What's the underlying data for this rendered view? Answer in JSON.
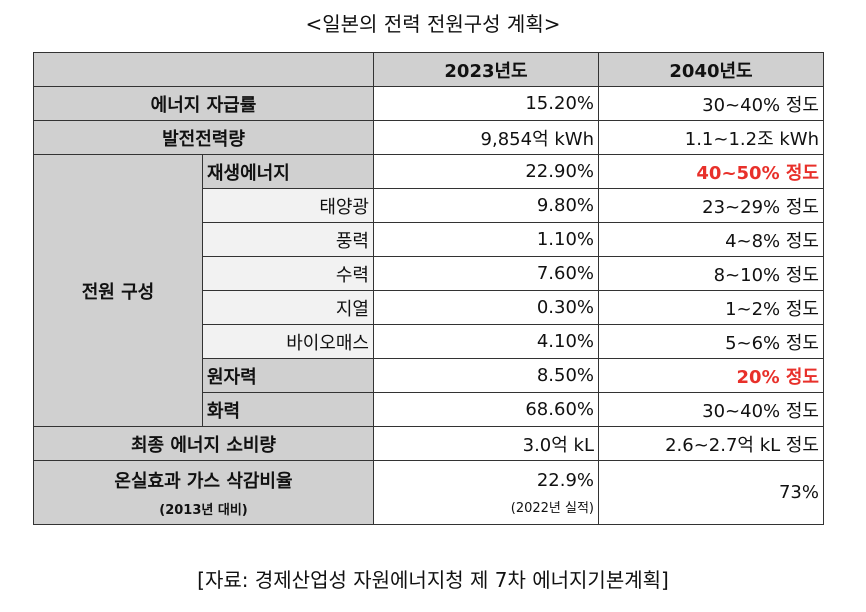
{
  "title": "<일본의 전력 전원구성 계획>",
  "header": {
    "col2023": "2023년도",
    "col2040": "2040년도"
  },
  "rows": {
    "self_sufficiency": {
      "label": "에너지 자급률",
      "v2023": "15.20%",
      "v2040": "30~40% 정도"
    },
    "generation": {
      "label": "발전전력량",
      "v2023": "9,854억 kWh",
      "v2040": "1.1~1.2조 kWh"
    },
    "mix_label": "전원 구성",
    "renewable": {
      "label": "재생에너지",
      "v2023": "22.90%",
      "v2040": "40~50% 정도"
    },
    "solar": {
      "label": "태양광",
      "v2023": "9.80%",
      "v2040": "23~29% 정도"
    },
    "wind": {
      "label": "풍력",
      "v2023": "1.10%",
      "v2040": "4~8% 정도"
    },
    "hydro": {
      "label": "수력",
      "v2023": "7.60%",
      "v2040": "8~10% 정도"
    },
    "geothermal": {
      "label": "지열",
      "v2023": "0.30%",
      "v2040": "1~2% 정도"
    },
    "biomass": {
      "label": "바이오매스",
      "v2023": "4.10%",
      "v2040": "5~6% 정도"
    },
    "nuclear": {
      "label": "원자력",
      "v2023": "8.50%",
      "v2040": "20% 정도"
    },
    "thermal": {
      "label": "화력",
      "v2023": "68.60%",
      "v2040": "30~40% 정도"
    },
    "final_consumption": {
      "label": "최종 에너지 소비량",
      "v2023": "3.0억 kL",
      "v2040": "2.6~2.7억 kL 정도"
    },
    "ghg": {
      "label": "온실효과 가스 삭감비율",
      "label_note": "(2013년 대비)",
      "v2023": "22.9%",
      "v2023_note": "(2022년 실적)",
      "v2040": "73%"
    }
  },
  "source": "[자료: 경제산업성 자원에너지청 제 7차 에너지기본계획]",
  "colors": {
    "header_gray": "#d0d0d0",
    "sub_gray": "#f2f2f2",
    "highlight_red": "#e8302a"
  }
}
